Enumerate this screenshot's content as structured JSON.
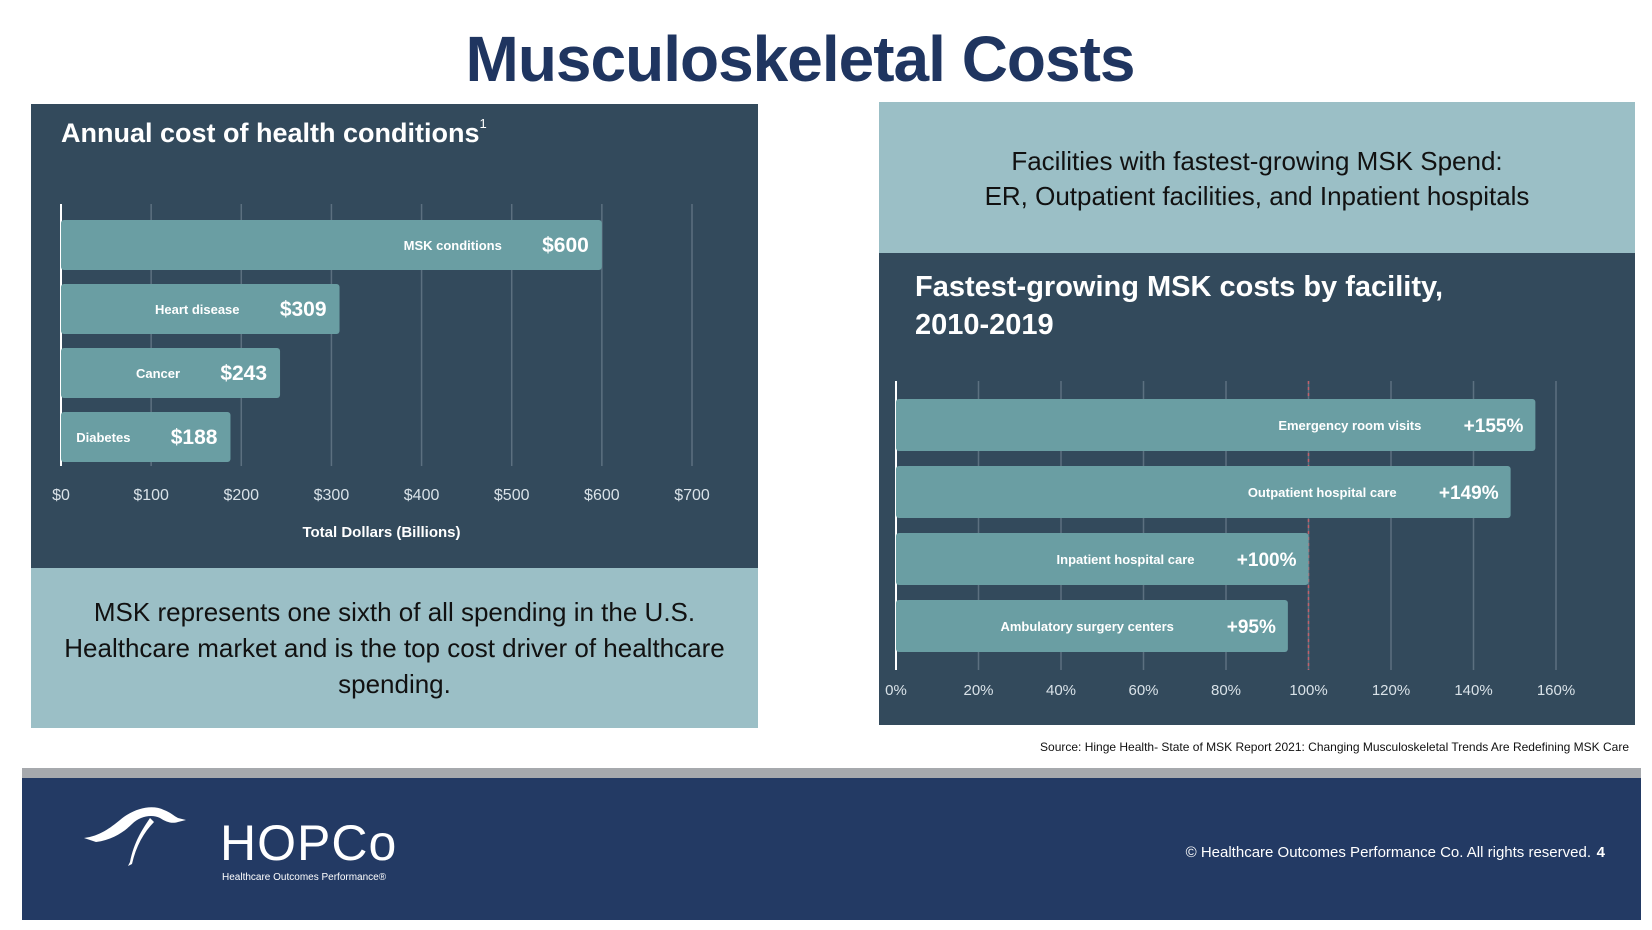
{
  "title": "Musculoskeletal Costs",
  "left_panel": {
    "chart_title": "Annual cost of health conditions",
    "footnote_mark": "1",
    "summary": "MSK represents one sixth of all spending in the U.S. Healthcare market and is the top cost driver of healthcare spending."
  },
  "right_panel": {
    "headline_line1": "Facilities with fastest-growing MSK Spend:",
    "headline_line2": "ER, Outpatient facilities, and Inpatient hospitals",
    "chart_title_line1": "Fastest-growing MSK costs by facility,",
    "chart_title_line2": "2010-2019"
  },
  "chart_data": [
    {
      "type": "bar",
      "orientation": "horizontal",
      "title": "Annual cost of health conditions",
      "categories": [
        "MSK conditions",
        "Heart disease",
        "Cancer",
        "Diabetes"
      ],
      "values": [
        600,
        309,
        243,
        188
      ],
      "value_labels": [
        "$600",
        "$309",
        "$243",
        "$188"
      ],
      "xlabel": "Total Dollars (Billions)",
      "xlim": [
        0,
        700
      ],
      "xticks": [
        0,
        100,
        200,
        300,
        400,
        500,
        600,
        700
      ],
      "xtick_labels": [
        "$0",
        "$100",
        "$200",
        "$300",
        "$400",
        "$500",
        "$600",
        "$700"
      ],
      "grid": true
    },
    {
      "type": "bar",
      "orientation": "horizontal",
      "title": "Fastest-growing MSK costs by facility, 2010-2019",
      "categories": [
        "Emergency room visits",
        "Outpatient hospital care",
        "Inpatient hospital care",
        "Ambulatory surgery centers"
      ],
      "values": [
        155,
        149,
        100,
        95
      ],
      "value_labels": [
        "+155%",
        "+149%",
        "+100%",
        "+95%"
      ],
      "xlim": [
        0,
        160
      ],
      "xticks": [
        0,
        20,
        40,
        60,
        80,
        100,
        120,
        140,
        160
      ],
      "xtick_labels": [
        "0%",
        "20%",
        "40%",
        "60%",
        "80%",
        "100%",
        "120%",
        "140%",
        "160%"
      ],
      "reference_line": 100,
      "grid": true
    }
  ],
  "source": "Source: Hinge Health- State of MSK Report 2021: Changing Musculoskeletal Trends Are Redefining MSK Care",
  "footer": {
    "logo_text": "HOPCo",
    "logo_subtext": "Healthcare Outcomes Performance®",
    "copyright": "© Healthcare Outcomes Performance Co. All rights reserved.",
    "page_number": "4"
  },
  "colors": {
    "navy": "#1f3560",
    "panel_dark": "#334a5c",
    "panel_light": "#9bbfc6",
    "bar": "#6a9ea3",
    "grid": "#5c7080",
    "reference_line": "#c0606a",
    "footer": "#233a64"
  }
}
